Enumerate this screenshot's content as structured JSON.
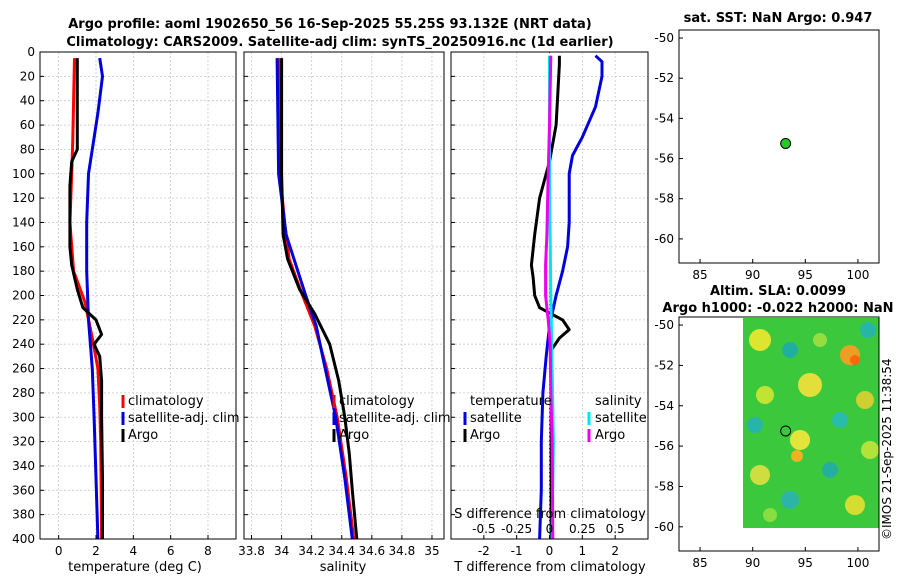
{
  "title": {
    "line1": "Argo profile: aoml 1902650_56 16-Sep-2025 55.25S 93.132E (NRT data)",
    "line2": "Climatology: CARS2009. Satellite-adj clim: synTS_20250916.nc (1d earlier)"
  },
  "watermark": "©IMOS 21-Sep-2025 11:38:54",
  "depth_ticks": [
    0,
    20,
    40,
    60,
    80,
    100,
    120,
    140,
    160,
    180,
    200,
    220,
    240,
    260,
    280,
    300,
    320,
    340,
    360,
    380,
    400
  ],
  "colors": {
    "climatology": "#ff0000",
    "satellite": "#0000dd",
    "argo": "#000000",
    "sat_salinity": "#00e5ee",
    "argo_salinity": "#ee00ee",
    "grid": "#c8c8c8"
  },
  "chart_data": [
    {
      "id": "temperature",
      "type": "line",
      "xlabel": "temperature (deg C)",
      "ylabel": "depth",
      "xlim": [
        -1,
        9.5
      ],
      "ylim": [
        400,
        0
      ],
      "xticks": [
        0,
        2,
        4,
        6,
        8
      ],
      "legend_position": "lower-right",
      "legend": [
        "climatology",
        "satellite-adj. clim",
        "Argo"
      ],
      "series": [
        {
          "name": "climatology",
          "color": "#ff0000",
          "depth": [
            5,
            40,
            75,
            100,
            140,
            180,
            205,
            235,
            260,
            290,
            320,
            360,
            400
          ],
          "values": [
            0.85,
            0.8,
            0.75,
            0.7,
            0.6,
            0.8,
            1.4,
            1.8,
            2.1,
            2.2,
            2.25,
            2.28,
            2.3
          ]
        },
        {
          "name": "satellite-adj. clim",
          "color": "#0000dd",
          "depth": [
            5,
            20,
            50,
            80,
            100,
            140,
            180,
            220,
            260,
            300,
            350,
            400
          ],
          "values": [
            2.2,
            2.35,
            2.1,
            1.8,
            1.6,
            1.5,
            1.5,
            1.6,
            1.8,
            1.9,
            2.0,
            2.1
          ]
        },
        {
          "name": "Argo",
          "color": "#000000",
          "depth": [
            5,
            80,
            90,
            110,
            140,
            160,
            175,
            195,
            210,
            220,
            232,
            240,
            250,
            270,
            300,
            350,
            400
          ],
          "values": [
            1.0,
            1.0,
            0.7,
            0.6,
            0.6,
            0.6,
            0.7,
            1.0,
            1.3,
            2.0,
            2.3,
            1.9,
            2.2,
            2.3,
            2.3,
            2.35,
            2.35
          ]
        }
      ]
    },
    {
      "id": "salinity",
      "type": "line",
      "xlabel": "salinity",
      "ylabel": "depth",
      "xlim": [
        33.75,
        35.08
      ],
      "ylim": [
        400,
        0
      ],
      "xticks": [
        33.8,
        34.0,
        34.2,
        34.4,
        34.6,
        34.8,
        35.0
      ],
      "xticklabels": [
        "33.8",
        "34",
        "34.2",
        "34.4",
        "34.6",
        "34.8",
        "35"
      ],
      "legend_position": "lower-right",
      "legend": [
        "climatology",
        "satellite-adj. clim",
        "Argo"
      ],
      "series": [
        {
          "name": "climatology",
          "color": "#ff0000",
          "depth": [
            5,
            100,
            140,
            170,
            200,
            225,
            260,
            300,
            350,
            400
          ],
          "values": [
            33.98,
            33.99,
            34.02,
            34.05,
            34.14,
            34.22,
            34.3,
            34.37,
            34.43,
            34.48
          ]
        },
        {
          "name": "satellite-adj. clim",
          "color": "#0000dd",
          "depth": [
            5,
            100,
            150,
            200,
            225,
            260,
            300,
            350,
            400
          ],
          "values": [
            33.97,
            33.98,
            34.03,
            34.16,
            34.23,
            34.29,
            34.36,
            34.42,
            34.47
          ]
        },
        {
          "name": "Argo",
          "color": "#000000",
          "depth": [
            5,
            100,
            150,
            170,
            195,
            215,
            240,
            270,
            300,
            330,
            360,
            400
          ],
          "values": [
            34.0,
            34.0,
            34.01,
            34.04,
            34.12,
            34.22,
            34.32,
            34.38,
            34.42,
            34.45,
            34.47,
            34.5
          ]
        }
      ]
    },
    {
      "id": "difference",
      "type": "line",
      "xlabel": "T difference from climatology",
      "top_label": "S difference from climatology",
      "ylabel": "depth",
      "xlim": [
        -3.0,
        3.0
      ],
      "ylim": [
        400,
        0
      ],
      "xticks": [
        -2,
        -1,
        0,
        1,
        2
      ],
      "x2ticks": [
        -0.5,
        -0.25,
        0,
        0.25,
        0.5
      ],
      "x2ticklabels": [
        "-0.5",
        "-0.25",
        "0",
        "0.25",
        "0.5"
      ],
      "legend_position": "lower-center",
      "legend_temperature_title": "temperature",
      "legend_salinity_title": "salinity",
      "legend_temperature": [
        "satellite",
        "Argo"
      ],
      "legend_salinity": [
        "satellite",
        "Argo"
      ],
      "series": [
        {
          "name": "temperature satellite",
          "color": "#0000dd",
          "depth": [
            3,
            8,
            20,
            45,
            70,
            85,
            100,
            120,
            140,
            160,
            180,
            200,
            225,
            250,
            280,
            320,
            360,
            400
          ],
          "values": [
            1.4,
            1.6,
            1.6,
            1.4,
            1.0,
            0.7,
            0.6,
            0.6,
            0.6,
            0.55,
            0.4,
            0.2,
            0.0,
            -0.1,
            -0.2,
            -0.25,
            -0.25,
            -0.3
          ]
        },
        {
          "name": "temperature Argo",
          "color": "#000000",
          "depth": [
            3,
            10,
            60,
            90,
            100,
            120,
            150,
            175,
            185,
            200,
            210,
            220,
            228,
            235,
            245,
            280,
            320,
            400
          ],
          "values": [
            0.3,
            0.3,
            0.2,
            0.0,
            -0.1,
            -0.3,
            -0.45,
            -0.55,
            -0.5,
            -0.45,
            -0.3,
            0.4,
            0.6,
            0.3,
            0.05,
            0.05,
            0.05,
            0.05
          ]
        },
        {
          "name": "salinity satellite",
          "color": "#00e5ee",
          "depth": [
            3,
            100,
            200,
            260,
            320,
            400
          ],
          "values": [
            0.0,
            0.0,
            0.01,
            0.02,
            0.03,
            0.02
          ]
        },
        {
          "name": "salinity Argo",
          "color": "#ee00ee",
          "depth": [
            3,
            60,
            100,
            150,
            175,
            200,
            220,
            240,
            280,
            320,
            400
          ],
          "values": [
            0.01,
            0.0,
            -0.01,
            -0.02,
            -0.03,
            -0.03,
            -0.01,
            0.005,
            0.01,
            0.02,
            0.025
          ]
        }
      ]
    },
    {
      "id": "sst_map",
      "type": "scatter",
      "title": "sat. SST: NaN Argo: 0.947",
      "xlim": [
        83,
        102
      ],
      "ylim": [
        -61.2,
        -49.6
      ],
      "xticks": [
        85,
        90,
        95,
        100
      ],
      "yticks": [
        -50,
        -52,
        -54,
        -56,
        -58,
        -60
      ],
      "points": [
        {
          "lon": 93.132,
          "lat": -55.25,
          "color": "#22cc22"
        }
      ]
    },
    {
      "id": "sla_map",
      "type": "heatmap",
      "title_line1": "Altim. SLA: 0.0099",
      "title_line2": "Argo h1000: -0.022 h2000: NaN",
      "xlim": [
        83,
        102
      ],
      "ylim": [
        -61.2,
        -49.6
      ],
      "xticks": [
        85,
        90,
        95,
        100
      ],
      "yticks": [
        -50,
        -52,
        -54,
        -56,
        -58,
        -60
      ],
      "field_extent": {
        "lon": [
          90,
          102
        ],
        "lat": [
          -60,
          -49.1
        ]
      },
      "points": [
        {
          "lon": 93.132,
          "lat": -55.25
        }
      ]
    }
  ]
}
